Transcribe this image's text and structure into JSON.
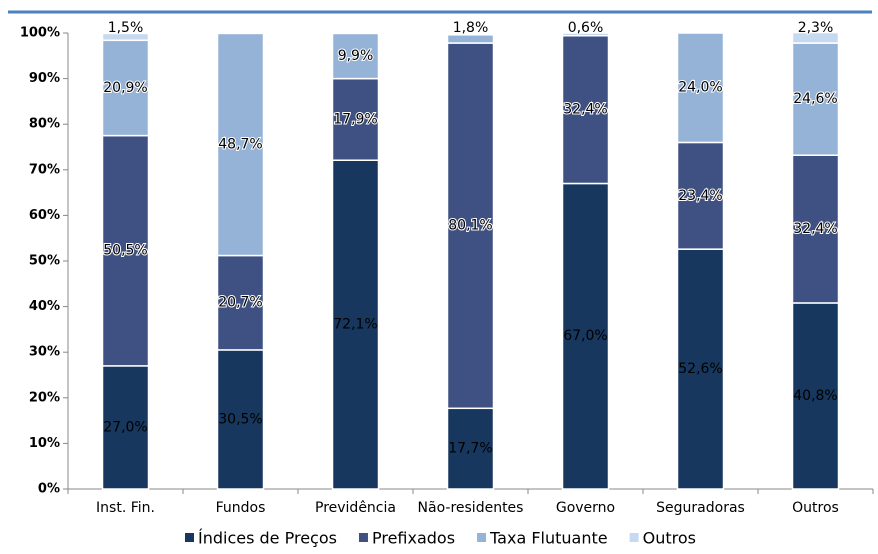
{
  "chart_data": {
    "type": "stacked_bar",
    "categories": [
      "Inst. Fin.",
      "Fundos",
      "Previdência",
      "Não-residentes",
      "Governo",
      "Seguradoras",
      "Outros"
    ],
    "series": [
      {
        "name": "Índices de Preços",
        "color": "#17375e",
        "values": [
          27.0,
          30.5,
          72.1,
          17.7,
          67.0,
          52.6,
          40.8
        ],
        "value_labels": [
          "27,0%",
          "30,5%",
          "72,1%",
          "17,7%",
          "67,0%",
          "52,6%",
          "40,8%"
        ]
      },
      {
        "name": "Prefixados",
        "color": "#3f5182",
        "values": [
          50.5,
          20.7,
          17.9,
          80.1,
          32.4,
          23.4,
          32.4
        ],
        "value_labels": [
          "50,5%",
          "20,7%",
          "17,9%",
          "80,1%",
          "32,4%",
          "23,4%",
          "32,4%"
        ]
      },
      {
        "name": "Taxa Flutuante",
        "color": "#95b3d7",
        "values": [
          20.9,
          48.7,
          9.9,
          1.8,
          null,
          24.0,
          24.6
        ],
        "value_labels": [
          "20,9%",
          "48,7%",
          "9,9%",
          "1,8%",
          null,
          "24,0%",
          "24,6%"
        ]
      },
      {
        "name": "Outros",
        "color": "#c6d9f1",
        "values": [
          1.5,
          null,
          null,
          null,
          0.6,
          null,
          2.3
        ],
        "value_labels": [
          "1,5%",
          null,
          null,
          null,
          "0,6%",
          null,
          "2,3%"
        ]
      }
    ],
    "ylim": [
      0,
      100
    ],
    "yticks": [
      {
        "value": 0,
        "label": "0%"
      },
      {
        "value": 10,
        "label": "10%"
      },
      {
        "value": 20,
        "label": "20%"
      },
      {
        "value": 30,
        "label": "30%"
      },
      {
        "value": 40,
        "label": "40%"
      },
      {
        "value": 50,
        "label": "50%"
      },
      {
        "value": 60,
        "label": "60%"
      },
      {
        "value": 70,
        "label": "70%"
      },
      {
        "value": 80,
        "label": "80%"
      },
      {
        "value": 90,
        "label": "90%"
      },
      {
        "value": 100,
        "label": "100%"
      }
    ],
    "grid": false
  }
}
